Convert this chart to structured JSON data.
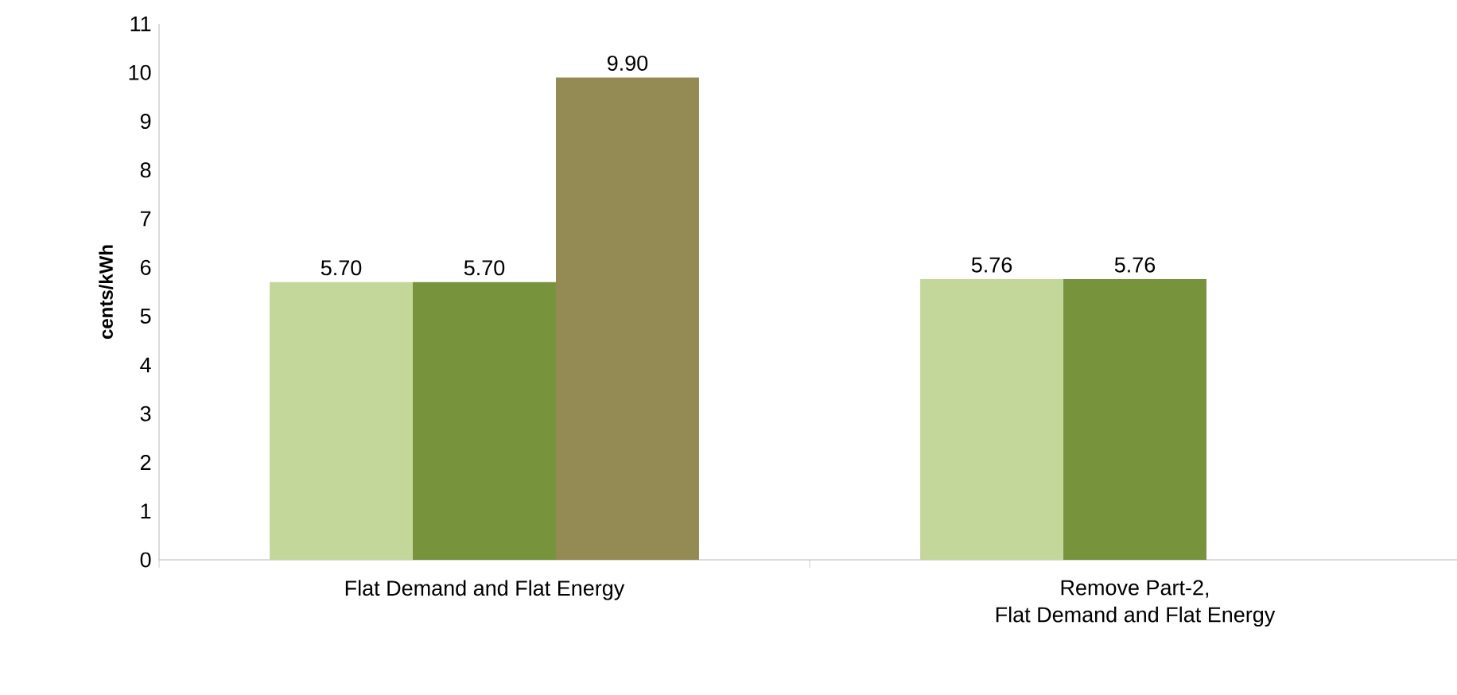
{
  "chart_data": {
    "type": "bar",
    "ylabel": "cents/kWh",
    "categories": [
      "Flat Demand and Flat Energy",
      "Remove Part-2,\nFlat Demand and Flat Energy"
    ],
    "series": [
      {
        "color": "#c4d79b",
        "values": [
          5.7,
          5.76
        ],
        "value_labels": [
          "5.70",
          "5.76"
        ]
      },
      {
        "color": "#77933c",
        "values": [
          5.7,
          5.76
        ],
        "value_labels": [
          "5.70",
          "5.76"
        ]
      },
      {
        "color": "#948a54",
        "values": [
          9.9,
          null
        ],
        "value_labels": [
          "9.90",
          null
        ]
      }
    ],
    "ylim": [
      0,
      11
    ],
    "yticks": [
      0,
      1,
      2,
      3,
      4,
      5,
      6,
      7,
      8,
      9,
      10,
      11
    ],
    "grid": false
  }
}
